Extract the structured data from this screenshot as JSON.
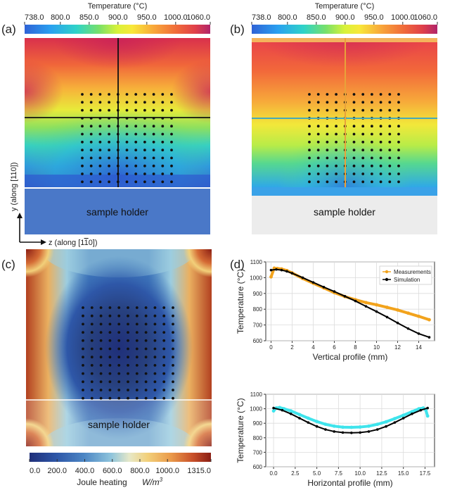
{
  "panel_labels": {
    "a": "(a)",
    "b": "(b)",
    "c": "(c)",
    "d": "(d)"
  },
  "colorbar_temp": {
    "title": "Temperature (°C)",
    "ticks": [
      "738.0",
      "800.0",
      "850.0",
      "900.0",
      "950.0",
      "1000.0",
      "1060.0"
    ],
    "tick_values": [
      738,
      800,
      850,
      900,
      950,
      1000,
      1060
    ],
    "range": [
      738,
      1060
    ]
  },
  "colorbar_joule": {
    "title": "Joule heating",
    "unit": "W/m",
    "unit_exp": "3",
    "ticks": [
      "0.0",
      "200.0",
      "400.0",
      "600.0",
      "800.0",
      "1000.0",
      "1315.0"
    ],
    "tick_values": [
      0,
      200,
      400,
      600,
      800,
      1000,
      1315
    ],
    "range": [
      0,
      1315
    ]
  },
  "sample_holder_label": "sample holder",
  "axes_arrows": {
    "y_label": "y (along [110])",
    "z_label": "z (along [1",
    "z_label_bar": "1",
    "z_label_end": "0])"
  },
  "colors": {
    "holder_a": "#4a78c8",
    "holder_b": "#ececec",
    "cross_a": "#111111",
    "cross_b_h": "#48a9b8",
    "cross_b_v": "#e8a23a",
    "meas": "#f2a31c",
    "sim": "#000000",
    "cyan": "#3fe4ec"
  },
  "chart_data": [
    {
      "type": "scatter",
      "title": "",
      "xlabel": "Vertical profile (mm)",
      "ylabel": "Temperature (°C)",
      "xlim": [
        -0.5,
        15.5
      ],
      "ylim": [
        600,
        1100
      ],
      "xticks": [
        "0",
        "2",
        "4",
        "6",
        "8",
        "10",
        "12",
        "14"
      ],
      "xtick_values": [
        0,
        2,
        4,
        6,
        8,
        10,
        12,
        14
      ],
      "yticks": [
        "600",
        "700",
        "800",
        "900",
        "1000",
        "1100"
      ],
      "ytick_values": [
        600,
        700,
        800,
        900,
        1000,
        1100
      ],
      "grid": true,
      "legend": "top-right",
      "series": [
        {
          "name": "Measurements",
          "color": "#f2a31c",
          "x": [
            0,
            0.3,
            0.6,
            1,
            1.5,
            2,
            3,
            4,
            5,
            6,
            7,
            8,
            9,
            10,
            11,
            12,
            13,
            14,
            15
          ],
          "y": [
            1005,
            1060,
            1058,
            1055,
            1045,
            1030,
            995,
            965,
            935,
            905,
            880,
            860,
            842,
            828,
            812,
            795,
            775,
            755,
            733
          ]
        },
        {
          "name": "Simulation",
          "color": "#000000",
          "x": [
            0,
            0.5,
            1,
            1.5,
            2,
            3,
            4,
            5,
            6,
            7,
            8,
            9,
            10,
            11,
            12,
            13,
            14,
            15
          ],
          "y": [
            1048,
            1052,
            1048,
            1040,
            1028,
            1000,
            970,
            940,
            912,
            882,
            852,
            818,
            785,
            750,
            713,
            677,
            645,
            622
          ]
        }
      ]
    },
    {
      "type": "scatter",
      "title": "",
      "xlabel": "Horizontal profile (mm)",
      "ylabel": "Temperature (°C)",
      "xlim": [
        -0.9,
        18.6
      ],
      "ylim": [
        600,
        1100
      ],
      "xticks": [
        "0.0",
        "2.5",
        "5.0",
        "7.5",
        "10.0",
        "12.5",
        "15.0",
        "17.5"
      ],
      "xtick_values": [
        0,
        2.5,
        5,
        7.5,
        10,
        12.5,
        15,
        17.5
      ],
      "yticks": [
        "600",
        "700",
        "800",
        "900",
        "1000",
        "1100"
      ],
      "ytick_values": [
        600,
        700,
        800,
        900,
        1000,
        1100
      ],
      "grid": true,
      "series": [
        {
          "name": "",
          "color": "#3fe4ec",
          "x": [
            0,
            0.3,
            0.7,
            1.2,
            2,
            3,
            4,
            5,
            6,
            7,
            8,
            9,
            10,
            11,
            12,
            13,
            14,
            15,
            16,
            16.8,
            17.3,
            17.6,
            17.8
          ],
          "y": [
            985,
            1005,
            1008,
            1000,
            985,
            960,
            935,
            912,
            893,
            880,
            873,
            872,
            874,
            880,
            893,
            910,
            932,
            955,
            980,
            1000,
            1005,
            990,
            950
          ]
        },
        {
          "name": "",
          "color": "#000000",
          "x": [
            0,
            1,
            2,
            3,
            4,
            5,
            6,
            7,
            8,
            9,
            10,
            11,
            12,
            13,
            14,
            15,
            16,
            17,
            17.8
          ],
          "y": [
            1005,
            990,
            965,
            935,
            905,
            878,
            857,
            843,
            836,
            834,
            836,
            843,
            857,
            878,
            905,
            935,
            965,
            990,
            1005
          ]
        }
      ]
    }
  ]
}
